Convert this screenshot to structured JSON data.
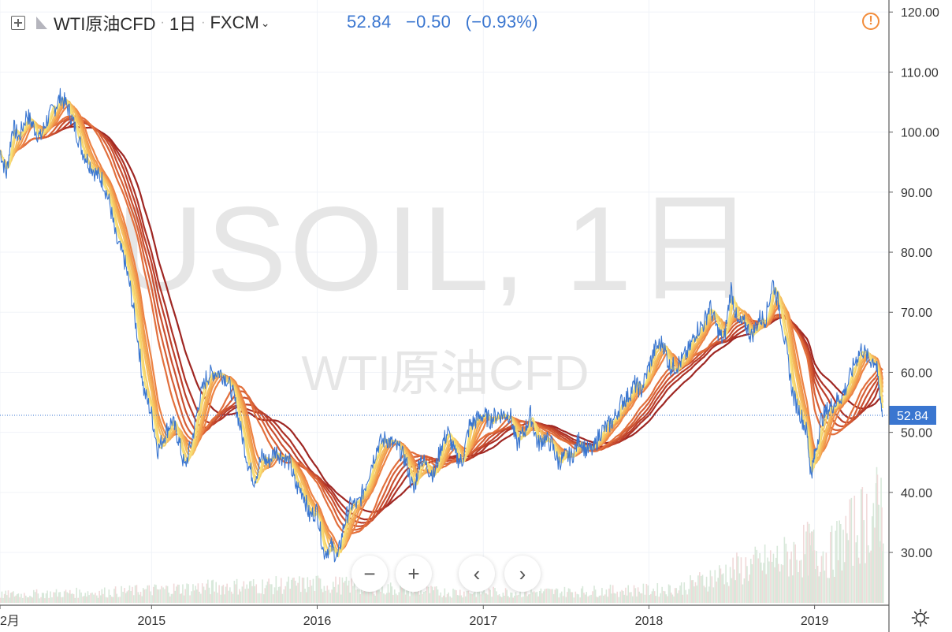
{
  "header": {
    "symbol": "WTI原油CFD",
    "interval": "1日",
    "exchange": "FXCM",
    "price": "52.84",
    "change": "−0.50",
    "change_pct": "(−0.93%)",
    "colors": {
      "quote": "#3a76d0",
      "warning": "#f28c3a"
    }
  },
  "controls": {
    "zoom_out": "−",
    "zoom_in": "+",
    "scroll_left": "‹",
    "scroll_right": "›",
    "plus_icon": "plus-square-icon",
    "flag_icon": "flag-icon",
    "warning_icon": "alert-circle-icon",
    "settings_icon": "gear-icon"
  },
  "watermark": {
    "line1": "USOIL, 1日",
    "line2": "WTI原油CFD"
  },
  "chart_data": {
    "type": "line",
    "y_ticks": [
      "120.00",
      "110.00",
      "100.00",
      "90.00",
      "80.00",
      "70.00",
      "60.00",
      "50.00",
      "40.00",
      "30.00"
    ],
    "ylim": [
      22,
      122
    ],
    "x_ticks": [
      {
        "label": "2月",
        "date": "2014-02-01"
      },
      {
        "label": "2015",
        "date": "2015-01-01"
      },
      {
        "label": "2016",
        "date": "2016-01-01"
      },
      {
        "label": "2017",
        "date": "2017-01-01"
      },
      {
        "label": "2018",
        "date": "2018-01-01"
      },
      {
        "label": "2019",
        "date": "2019-01-01"
      }
    ],
    "xlim": [
      "2014-02-01",
      "2019-05-31"
    ],
    "last_price": 52.84,
    "last_price_label": "52.84",
    "grid": true,
    "series": [
      {
        "role": "price",
        "color": "#3a76d0",
        "points": [
          [
            "2014-02-01",
            97
          ],
          [
            "2014-02-15",
            93
          ],
          [
            "2014-03-01",
            101
          ],
          [
            "2014-03-15",
            99
          ],
          [
            "2014-04-01",
            103
          ],
          [
            "2014-04-15",
            101
          ],
          [
            "2014-05-01",
            99
          ],
          [
            "2014-05-15",
            102
          ],
          [
            "2014-06-01",
            104
          ],
          [
            "2014-06-15",
            106
          ],
          [
            "2014-07-01",
            104
          ],
          [
            "2014-07-15",
            101
          ],
          [
            "2014-08-01",
            97
          ],
          [
            "2014-08-15",
            95
          ],
          [
            "2014-09-01",
            93
          ],
          [
            "2014-09-15",
            92
          ],
          [
            "2014-10-01",
            88
          ],
          [
            "2014-10-15",
            82
          ],
          [
            "2014-11-01",
            79
          ],
          [
            "2014-11-15",
            74
          ],
          [
            "2014-12-01",
            66
          ],
          [
            "2014-12-15",
            57
          ],
          [
            "2015-01-01",
            53
          ],
          [
            "2015-01-15",
            47
          ],
          [
            "2015-02-01",
            50
          ],
          [
            "2015-02-15",
            52
          ],
          [
            "2015-03-01",
            49
          ],
          [
            "2015-03-15",
            44
          ],
          [
            "2015-04-01",
            49
          ],
          [
            "2015-04-15",
            55
          ],
          [
            "2015-05-01",
            59
          ],
          [
            "2015-05-15",
            60
          ],
          [
            "2015-06-01",
            60
          ],
          [
            "2015-06-15",
            59
          ],
          [
            "2015-07-01",
            56
          ],
          [
            "2015-07-15",
            51
          ],
          [
            "2015-08-01",
            45
          ],
          [
            "2015-08-15",
            42
          ],
          [
            "2015-09-01",
            46
          ],
          [
            "2015-09-15",
            45
          ],
          [
            "2015-10-01",
            47
          ],
          [
            "2015-10-15",
            46
          ],
          [
            "2015-11-01",
            45
          ],
          [
            "2015-11-15",
            41
          ],
          [
            "2015-12-01",
            40
          ],
          [
            "2015-12-15",
            36
          ],
          [
            "2016-01-01",
            37
          ],
          [
            "2016-01-15",
            30
          ],
          [
            "2016-02-01",
            31
          ],
          [
            "2016-02-15",
            29
          ],
          [
            "2016-03-01",
            35
          ],
          [
            "2016-03-15",
            38
          ],
          [
            "2016-04-01",
            38
          ],
          [
            "2016-04-15",
            41
          ],
          [
            "2016-05-01",
            45
          ],
          [
            "2016-05-15",
            48
          ],
          [
            "2016-06-01",
            49
          ],
          [
            "2016-06-15",
            48
          ],
          [
            "2016-07-01",
            47
          ],
          [
            "2016-07-15",
            45
          ],
          [
            "2016-08-01",
            40
          ],
          [
            "2016-08-15",
            46
          ],
          [
            "2016-09-01",
            44
          ],
          [
            "2016-09-15",
            43
          ],
          [
            "2016-10-01",
            48
          ],
          [
            "2016-10-15",
            50
          ],
          [
            "2016-11-01",
            46
          ],
          [
            "2016-11-15",
            45
          ],
          [
            "2016-12-01",
            51
          ],
          [
            "2016-12-15",
            52
          ],
          [
            "2017-01-01",
            53
          ],
          [
            "2017-01-15",
            52
          ],
          [
            "2017-02-01",
            53
          ],
          [
            "2017-02-15",
            53
          ],
          [
            "2017-03-01",
            53
          ],
          [
            "2017-03-15",
            48
          ],
          [
            "2017-04-01",
            50
          ],
          [
            "2017-04-15",
            53
          ],
          [
            "2017-05-01",
            48
          ],
          [
            "2017-05-15",
            49
          ],
          [
            "2017-06-01",
            48
          ],
          [
            "2017-06-15",
            45
          ],
          [
            "2017-07-01",
            46
          ],
          [
            "2017-07-15",
            46
          ],
          [
            "2017-08-01",
            49
          ],
          [
            "2017-08-15",
            47
          ],
          [
            "2017-09-01",
            47
          ],
          [
            "2017-09-15",
            50
          ],
          [
            "2017-10-01",
            51
          ],
          [
            "2017-10-15",
            52
          ],
          [
            "2017-11-01",
            55
          ],
          [
            "2017-11-15",
            56
          ],
          [
            "2017-12-01",
            58
          ],
          [
            "2017-12-15",
            57
          ],
          [
            "2018-01-01",
            61
          ],
          [
            "2018-01-15",
            64
          ],
          [
            "2018-02-01",
            65
          ],
          [
            "2018-02-15",
            61
          ],
          [
            "2018-03-01",
            61
          ],
          [
            "2018-03-15",
            62
          ],
          [
            "2018-04-01",
            64
          ],
          [
            "2018-04-15",
            67
          ],
          [
            "2018-05-01",
            68
          ],
          [
            "2018-05-15",
            71
          ],
          [
            "2018-06-01",
            67
          ],
          [
            "2018-06-15",
            65
          ],
          [
            "2018-07-01",
            74
          ],
          [
            "2018-07-15",
            68
          ],
          [
            "2018-08-01",
            68
          ],
          [
            "2018-08-15",
            66
          ],
          [
            "2018-09-01",
            69
          ],
          [
            "2018-09-15",
            69
          ],
          [
            "2018-10-01",
            75
          ],
          [
            "2018-10-15",
            71
          ],
          [
            "2018-11-01",
            63
          ],
          [
            "2018-11-15",
            56
          ],
          [
            "2018-12-01",
            53
          ],
          [
            "2018-12-15",
            50
          ],
          [
            "2018-12-24",
            43
          ],
          [
            "2019-01-01",
            46
          ],
          [
            "2019-01-15",
            52
          ],
          [
            "2019-02-01",
            54
          ],
          [
            "2019-02-15",
            55
          ],
          [
            "2019-03-01",
            56
          ],
          [
            "2019-03-15",
            58
          ],
          [
            "2019-04-01",
            62
          ],
          [
            "2019-04-15",
            64
          ],
          [
            "2019-05-01",
            62
          ],
          [
            "2019-05-15",
            62
          ],
          [
            "2019-05-23",
            57.6
          ],
          [
            "2019-05-31",
            52.84
          ]
        ]
      }
    ],
    "moving_averages": {
      "periods": [
        3,
        5,
        8,
        10,
        12,
        15,
        30,
        35,
        40,
        45,
        50,
        60
      ],
      "colors": [
        "#f7e27a",
        "#f6d06a",
        "#f5bd5e",
        "#f3a954",
        "#f0954b",
        "#ec8244",
        "#e26f3c",
        "#d65e35",
        "#c94e2f",
        "#bc3f2a",
        "#ad3126",
        "#9e2622"
      ]
    },
    "volume": {
      "color": "#d8e8da",
      "approximate": [
        [
          "2014-02-01",
          1.5
        ],
        [
          "2014-10-01",
          2
        ],
        [
          "2015-06-01",
          3
        ],
        [
          "2016-01-15",
          3.5
        ],
        [
          "2016-10-01",
          2
        ],
        [
          "2017-06-01",
          2
        ],
        [
          "2018-03-01",
          2.5
        ],
        [
          "2018-07-01",
          6
        ],
        [
          "2018-10-15",
          8
        ],
        [
          "2018-12-15",
          10
        ],
        [
          "2019-02-01",
          9
        ],
        [
          "2019-04-01",
          14
        ],
        [
          "2019-05-31",
          18
        ]
      ]
    }
  }
}
